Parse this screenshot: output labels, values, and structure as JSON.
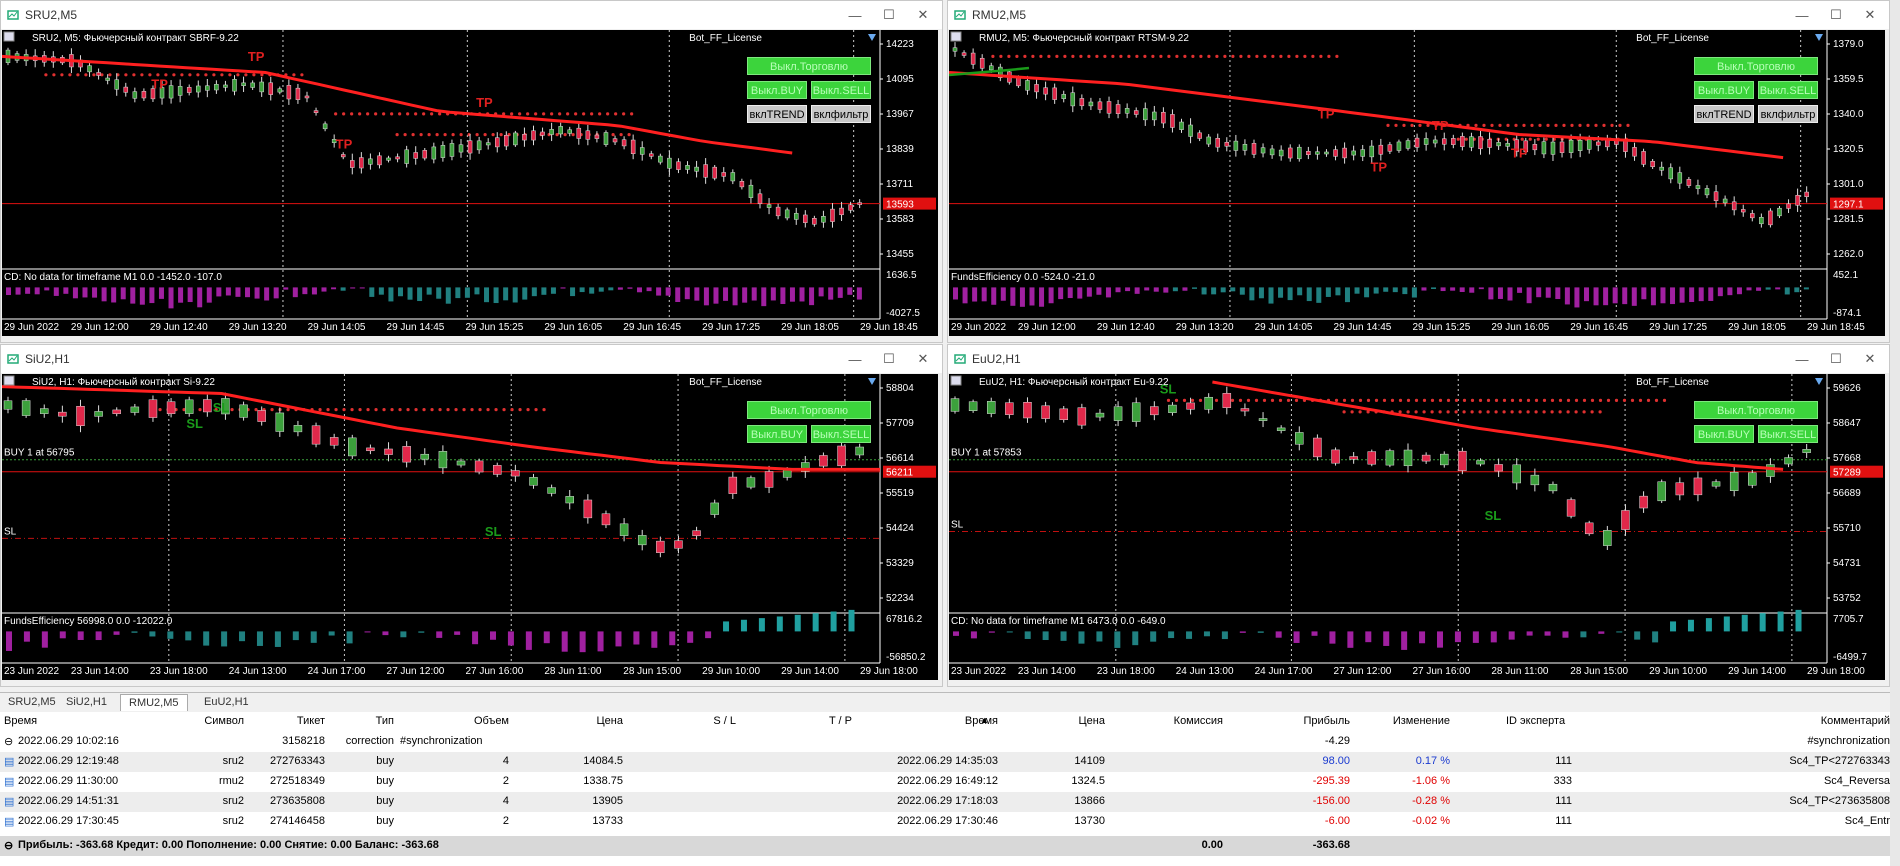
{
  "charts": [
    {
      "window_title": "SRU2,M5",
      "header": "SRU2, M5:  Фьючерсный контракт SBRF-9.22",
      "bot_label": "Bot_FF_License",
      "buttons": [
        "Выкл.Торговлю",
        "Выкл.BUY",
        "Выкл.SELL",
        "вклTREND",
        "вклфильтр"
      ],
      "price_axis": [
        "14223",
        "14095",
        "13967",
        "13839",
        "13711",
        "13583",
        "13455"
      ],
      "current_price": "13593",
      "indicator_text": "CD: No data for timeframe M1 0.0 -1452.0 -107.0",
      "indicator_axis": [
        "1636.5",
        "-4027.5"
      ],
      "time_axis": [
        "29 Jun 2022",
        "29 Jun 12:00",
        "29 Jun 12:40",
        "29 Jun 13:20",
        "29 Jun 14:05",
        "29 Jun 14:45",
        "29 Jun 15:25",
        "29 Jun 16:05",
        "29 Jun 16:45",
        "29 Jun 17:25",
        "29 Jun 18:05",
        "29 Jun 18:45"
      ],
      "labels": [
        "TP",
        "TP",
        "TP",
        "TP"
      ]
    },
    {
      "window_title": "RMU2,M5",
      "header": "RMU2, M5:  Фьючерсный контракт RTSM-9.22",
      "bot_label": "Bot_FF_License",
      "buttons": [
        "Выкл.Торговлю",
        "Выкл.BUY",
        "Выкл.SELL",
        "вклTREND",
        "вклфильтр"
      ],
      "price_axis": [
        "1379.0",
        "1359.5",
        "1340.0",
        "1320.5",
        "1301.0",
        "1281.5",
        "1262.0"
      ],
      "current_price": "1297.1",
      "indicator_text": "FundsEfficiency 0.0 -524.0 -21.0",
      "indicator_axis": [
        "452.1",
        "-874.1"
      ],
      "time_axis": [
        "29 Jun 2022",
        "29 Jun 12:00",
        "29 Jun 12:40",
        "29 Jun 13:20",
        "29 Jun 14:05",
        "29 Jun 14:45",
        "29 Jun 15:25",
        "29 Jun 16:05",
        "29 Jun 16:45",
        "29 Jun 17:25",
        "29 Jun 18:05",
        "29 Jun 18:45"
      ],
      "labels": [
        "TP",
        "TP",
        "TP",
        "TP"
      ]
    },
    {
      "window_title": "SiU2,H1",
      "header": "SiU2, H1:  Фьючерсный контракт Si-9.22",
      "bot_label": "Bot_FF_License",
      "buttons": [
        "Выкл.Торговлю",
        "Выкл.BUY",
        "Выкл.SELL"
      ],
      "price_axis": [
        "58804",
        "57709",
        "56614",
        "55519",
        "54424",
        "53329",
        "52234"
      ],
      "current_price": "56211",
      "buy_label": "BUY 1 at 56795",
      "sl_label": "SL",
      "indicator_text": "FundsEfficiency 56998.0 0.0 -12022.0",
      "indicator_axis": [
        "67816.2",
        "-56850.2"
      ],
      "time_axis": [
        "23 Jun 2022",
        "23 Jun 14:00",
        "23 Jun 18:00",
        "24 Jun 13:00",
        "24 Jun 17:00",
        "27 Jun 12:00",
        "27 Jun 16:00",
        "28 Jun 11:00",
        "28 Jun 15:00",
        "29 Jun 10:00",
        "29 Jun 14:00",
        "29 Jun 18:00"
      ],
      "labels": [
        "SL",
        "SL",
        "SL"
      ]
    },
    {
      "window_title": "EuU2,H1",
      "header": "EuU2, H1:  Фьючерсный контракт Eu-9.22",
      "bot_label": "Bot_FF_License",
      "buttons": [
        "Выкл.Торговлю",
        "Выкл.BUY",
        "Выкл.SELL"
      ],
      "price_axis": [
        "59626",
        "58647",
        "57668",
        "56689",
        "55710",
        "54731",
        "53752"
      ],
      "current_price": "57289",
      "buy_label": "BUY 1 at 57853",
      "sl_label": "SL",
      "indicator_text": "CD: No data for timeframe M1 6473.0 0.0 -649.0",
      "indicator_axis": [
        "7705.7",
        "-6499.7"
      ],
      "time_axis": [
        "23 Jun 2022",
        "23 Jun 14:00",
        "23 Jun 18:00",
        "24 Jun 13:00",
        "24 Jun 17:00",
        "27 Jun 12:00",
        "27 Jun 16:00",
        "28 Jun 11:00",
        "28 Jun 15:00",
        "29 Jun 10:00",
        "29 Jun 14:00",
        "29 Jun 18:00"
      ],
      "labels": [
        "SL",
        "SL"
      ]
    }
  ],
  "tabs": [
    "SRU2,M5",
    "SiU2,H1",
    "RMU2,M5",
    "EuU2,H1"
  ],
  "active_tab": "RMU2,M5",
  "table": {
    "headers": [
      "Время",
      "Символ",
      "Тикет",
      "Тип",
      "Объем",
      "Цена",
      "S / L",
      "T / P",
      "Время",
      "Цена",
      "Комиссия",
      "Прибыль",
      "Изменение",
      "ID эксперта",
      "Комментарий"
    ],
    "balance_row": {
      "time": "2022.06.29 10:02:16",
      "ticket": "3158218",
      "type": "correction",
      "volume": "#synchronization",
      "profit": "-4.29",
      "comment": "#synchronization"
    },
    "rows": [
      {
        "time": "2022.06.29 12:19:48",
        "symbol": "sru2",
        "ticket": "272763343",
        "type": "buy",
        "volume": "4",
        "price": "14084.5",
        "close_time": "2022.06.29 14:35:03",
        "close_price": "14109",
        "profit": "98.00",
        "change": "0.17 %",
        "expert": "111",
        "comment": "Sc4_TP<272763343"
      },
      {
        "time": "2022.06.29 11:30:00",
        "symbol": "rmu2",
        "ticket": "272518349",
        "type": "buy",
        "volume": "2",
        "price": "1338.75",
        "close_time": "2022.06.29 16:49:12",
        "close_price": "1324.5",
        "profit": "-295.39",
        "change": "-1.06 %",
        "expert": "333",
        "comment": "Sc4_Reversa"
      },
      {
        "time": "2022.06.29 14:51:31",
        "symbol": "sru2",
        "ticket": "273635808",
        "type": "buy",
        "volume": "4",
        "price": "13905",
        "close_time": "2022.06.29 17:18:03",
        "close_price": "13866",
        "profit": "-156.00",
        "change": "-0.28 %",
        "expert": "111",
        "comment": "Sc4_TP<273635808"
      },
      {
        "time": "2022.06.29 17:30:45",
        "symbol": "sru2",
        "ticket": "274146458",
        "type": "buy",
        "volume": "2",
        "price": "13733",
        "close_time": "2022.06.29 17:30:46",
        "close_price": "13730",
        "profit": "-6.00",
        "change": "-0.02 %",
        "expert": "111",
        "comment": "Sc4_Entr"
      }
    ],
    "summary": "Прибыль: -363.68  Кредит: 0.00  Пополнение: 0.00  Снятие: 0.00  Баланс: -363.68",
    "summary_commission": "0.00",
    "summary_profit": "-363.68"
  },
  "colors": {
    "bull": "#3ca03c",
    "bear": "#e0284a",
    "ma": "#ff2020",
    "hist_neg": "#a020a0",
    "hist_pos": "#20a0a0"
  }
}
